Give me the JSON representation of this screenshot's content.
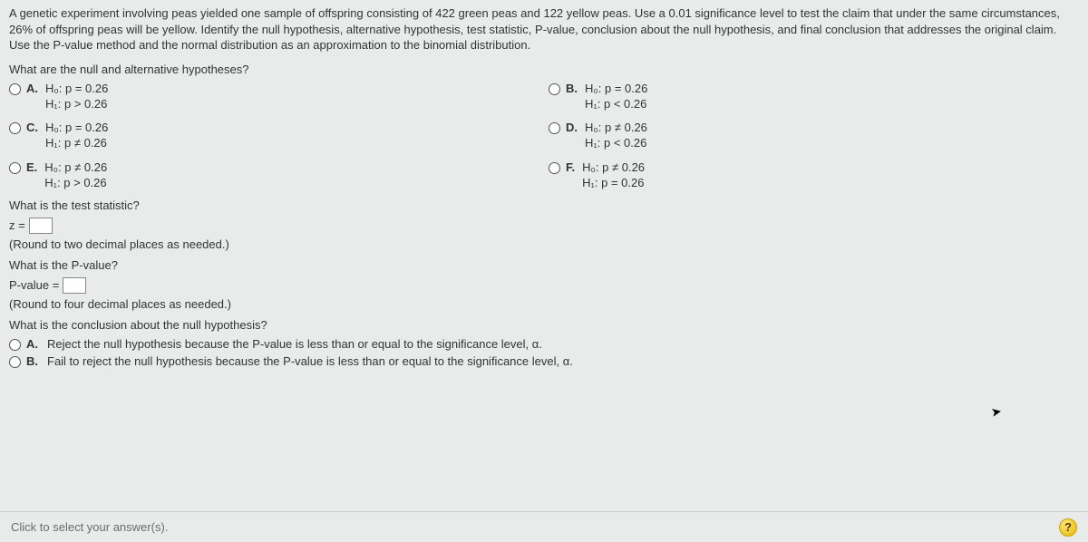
{
  "problem": "A genetic experiment involving peas yielded one sample of offspring consisting of 422 green peas and 122 yellow peas. Use a 0.01 significance level to test the claim that under the same circumstances, 26% of offspring peas will be yellow. Identify the null hypothesis, alternative hypothesis, test statistic, P-value, conclusion about the null hypothesis, and final conclusion that addresses the original claim. Use the P-value method and the normal distribution as an approximation to the binomial distribution.",
  "q1": "What are the null and alternative hypotheses?",
  "options": {
    "A": {
      "letter": "A.",
      "h0": "H₀: p = 0.26",
      "h1": "H₁: p > 0.26"
    },
    "B": {
      "letter": "B.",
      "h0": "H₀: p = 0.26",
      "h1": "H₁: p < 0.26"
    },
    "C": {
      "letter": "C.",
      "h0": "H₀: p = 0.26",
      "h1": "H₁: p ≠ 0.26"
    },
    "D": {
      "letter": "D.",
      "h0": "H₀: p ≠ 0.26",
      "h1": "H₁: p < 0.26"
    },
    "E": {
      "letter": "E.",
      "h0": "H₀: p ≠ 0.26",
      "h1": "H₁: p > 0.26"
    },
    "F": {
      "letter": "F.",
      "h0": "H₀: p ≠ 0.26",
      "h1": "H₁: p = 0.26"
    }
  },
  "q2": "What is the test statistic?",
  "z_label": "z =",
  "z_hint": "(Round to two decimal places as needed.)",
  "q3": "What is the P-value?",
  "p_label": "P-value =",
  "p_hint": "(Round to four decimal places as needed.)",
  "q4": "What is the conclusion about the null hypothesis?",
  "conclusion": {
    "A": {
      "letter": "A.",
      "text": "Reject the null hypothesis because the P-value is less than or equal to the significance level, α."
    },
    "B": {
      "letter": "B.",
      "text": "Fail to reject the null hypothesis because the P-value is less than or equal to the significance level, α."
    }
  },
  "footer_text": "Click to select your answer(s).",
  "help_label": "?"
}
